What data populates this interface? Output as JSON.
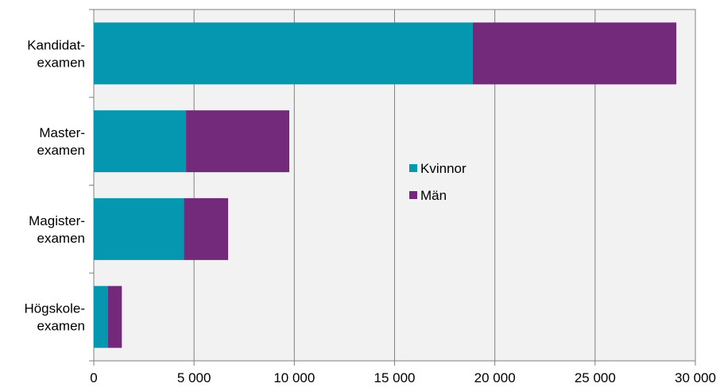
{
  "chart_data": {
    "type": "bar",
    "orientation": "horizontal",
    "stacked": true,
    "categories": [
      [
        "Kandidat-",
        "examen"
      ],
      [
        "Master-",
        "examen"
      ],
      [
        "Magister-",
        "examen"
      ],
      [
        "Högskole-",
        "examen"
      ]
    ],
    "series": [
      {
        "name": "Kvinnor",
        "color": "#0596b0",
        "values": [
          18900,
          4600,
          4500,
          700
        ]
      },
      {
        "name": "Män",
        "color": "#732a7b",
        "values": [
          10150,
          5150,
          2200,
          700
        ]
      }
    ],
    "xlim": [
      0,
      30000
    ],
    "xticks": [
      0,
      5000,
      10000,
      15000,
      20000,
      25000,
      30000
    ],
    "xtick_labels": [
      "0",
      "5 000",
      "10 000",
      "15 000",
      "20 000",
      "25 000",
      "30 000"
    ],
    "grid": true,
    "legend_position": "center-right",
    "plot_background": "#f2f2f2",
    "gridline_color": "#808080"
  }
}
